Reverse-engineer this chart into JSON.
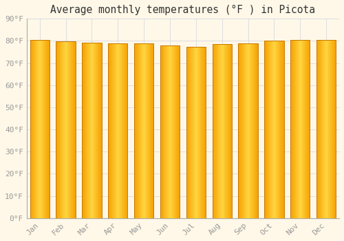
{
  "title": "Average monthly temperatures (°F ) in Picota",
  "months": [
    "Jan",
    "Feb",
    "Mar",
    "Apr",
    "May",
    "Jun",
    "Jul",
    "Aug",
    "Sep",
    "Oct",
    "Nov",
    "Dec"
  ],
  "values": [
    80.6,
    79.7,
    79.3,
    78.8,
    78.8,
    77.9,
    77.5,
    78.6,
    79.0,
    80.1,
    80.4,
    80.6
  ],
  "bar_color_center": "#FFD040",
  "bar_color_edge": "#F5A000",
  "bar_outline_color": "#C87800",
  "background_color": "#FFF8E8",
  "grid_color": "#D8D8E0",
  "text_color": "#999999",
  "title_color": "#333333",
  "ylim": [
    0,
    90
  ],
  "yticks": [
    0,
    10,
    20,
    30,
    40,
    50,
    60,
    70,
    80,
    90
  ],
  "title_fontsize": 10.5,
  "tick_fontsize": 8
}
